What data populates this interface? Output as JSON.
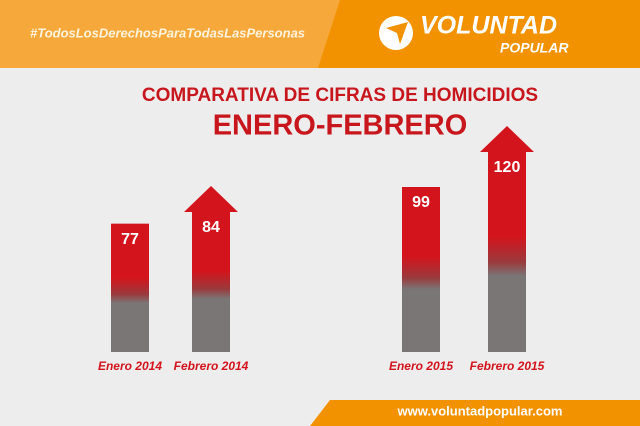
{
  "header": {
    "hashtag": "#TodosLosDerechosParaTodasLasPersonas",
    "logo_top": "VOLUNTAD",
    "logo_bottom": "POPULAR"
  },
  "footer": {
    "url": "www.voluntadpopular.com"
  },
  "chart_data": {
    "type": "bar",
    "title": "COMPARATIVA DE CIFRAS DE HOMICIDIOS",
    "subtitle": "ENERO-FEBRERO",
    "categories": [
      "Enero 2014",
      "Febrero 2014",
      "Enero 2015",
      "Febrero 2015"
    ],
    "values": [
      77,
      84,
      99,
      120
    ],
    "color": "#d4141c"
  }
}
